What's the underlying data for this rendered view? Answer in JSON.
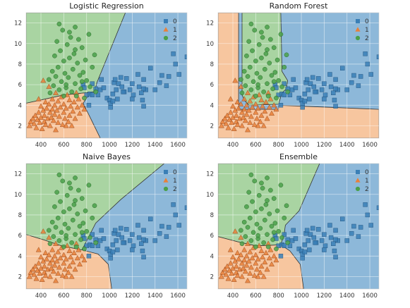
{
  "figure": {
    "xlim": [
      270,
      1680
    ],
    "ylim": [
      0.8,
      13.0
    ],
    "xticks": [
      400,
      600,
      800,
      1000,
      1200,
      1400,
      1600
    ],
    "yticks": [
      2,
      4,
      6,
      8,
      10,
      12
    ],
    "region_colors": {
      "0": "#8db8d9",
      "1": "#f7c69f",
      "2": "#a9d4a2"
    },
    "marker_colors": {
      "0": "#3a7fb6",
      "1": "#e8803a",
      "2": "#4aa04a"
    },
    "marker_shapes": {
      "0": "square",
      "1": "triangle",
      "2": "circle"
    },
    "legend": [
      "0",
      "1",
      "2"
    ],
    "grid": true,
    "legend_placement": "top-right"
  },
  "chart_data": [
    {
      "type": "scatter",
      "title": "Logistic Regression",
      "regions": {
        "2": [
          [
            270,
            13
          ],
          [
            1140,
            13
          ],
          [
            890,
            6.2
          ],
          [
            870,
            5.3
          ],
          [
            600,
            5.0
          ],
          [
            270,
            4.2
          ]
        ],
        "1": [
          [
            270,
            4.2
          ],
          [
            600,
            5.0
          ],
          [
            870,
            5.3
          ],
          [
            890,
            6.2
          ],
          [
            770,
            4.2
          ],
          [
            920,
            0.8
          ],
          [
            270,
            0.8
          ]
        ]
      }
    },
    {
      "type": "scatter",
      "title": "Random Forest",
      "regions": {
        "1": [
          [
            270,
            13
          ],
          [
            450,
            13
          ],
          [
            450,
            3.6
          ],
          [
            800,
            3.6
          ],
          [
            800,
            4.0
          ],
          [
            1680,
            3.6
          ],
          [
            1680,
            0.8
          ],
          [
            270,
            0.8
          ]
        ],
        "2": [
          [
            480,
            13
          ],
          [
            820,
            13
          ],
          [
            830,
            7.3
          ],
          [
            880,
            6.4
          ],
          [
            870,
            5.6
          ],
          [
            830,
            5.2
          ],
          [
            800,
            4.1
          ],
          [
            540,
            4.0
          ],
          [
            500,
            4.5
          ],
          [
            480,
            5.0
          ]
        ]
      }
    },
    {
      "type": "scatter",
      "title": "Naive Bayes",
      "regions": {
        "2": [
          [
            270,
            13
          ],
          [
            1480,
            13
          ],
          [
            1100,
            9.5
          ],
          [
            880,
            7.2
          ],
          [
            760,
            4.6
          ],
          [
            580,
            5.0
          ],
          [
            420,
            5.6
          ],
          [
            270,
            6.1
          ]
        ],
        "1": [
          [
            270,
            6.1
          ],
          [
            420,
            5.6
          ],
          [
            580,
            5.0
          ],
          [
            760,
            4.6
          ],
          [
            900,
            4.2
          ],
          [
            990,
            3.2
          ],
          [
            1010,
            1.6
          ],
          [
            1020,
            0.8
          ],
          [
            270,
            0.8
          ]
        ]
      }
    },
    {
      "type": "scatter",
      "title": "Ensemble",
      "regions": {
        "2": [
          [
            270,
            13
          ],
          [
            1160,
            13
          ],
          [
            980,
            8.4
          ],
          [
            860,
            7.0
          ],
          [
            850,
            6.2
          ],
          [
            820,
            5.1
          ],
          [
            600,
            5.0
          ],
          [
            440,
            5.4
          ],
          [
            270,
            5.9
          ]
        ],
        "1": [
          [
            270,
            5.9
          ],
          [
            440,
            5.4
          ],
          [
            600,
            5.0
          ],
          [
            820,
            5.1
          ],
          [
            900,
            4.5
          ],
          [
            990,
            3.2
          ],
          [
            1010,
            1.6
          ],
          [
            1020,
            0.8
          ],
          [
            270,
            0.8
          ]
        ]
      }
    }
  ],
  "points": {
    "0": [
      [
        770,
        6.0
      ],
      [
        780,
        5.7
      ],
      [
        800,
        5.0
      ],
      [
        820,
        4.0
      ],
      [
        830,
        5.1
      ],
      [
        850,
        5.0
      ],
      [
        850,
        6.1
      ],
      [
        880,
        5.6
      ],
      [
        900,
        5.0
      ],
      [
        920,
        5.5
      ],
      [
        930,
        6.5
      ],
      [
        950,
        5.7
      ],
      [
        980,
        4.7
      ],
      [
        1000,
        4.5
      ],
      [
        1010,
        4.2
      ],
      [
        1010,
        3.8
      ],
      [
        1030,
        4.4
      ],
      [
        1030,
        5.1
      ],
      [
        1040,
        6.2
      ],
      [
        1050,
        6.5
      ],
      [
        1060,
        5.5
      ],
      [
        1070,
        4.6
      ],
      [
        1080,
        6.1
      ],
      [
        1100,
        6.7
      ],
      [
        1110,
        5.8
      ],
      [
        1130,
        5.3
      ],
      [
        1150,
        6.6
      ],
      [
        1180,
        5.5
      ],
      [
        1200,
        6.1
      ],
      [
        1200,
        4.6
      ],
      [
        1210,
        5.0
      ],
      [
        1250,
        7.0
      ],
      [
        1260,
        5.8
      ],
      [
        1280,
        5.2
      ],
      [
        1290,
        4.5
      ],
      [
        1300,
        3.9
      ],
      [
        1300,
        6.5
      ],
      [
        1320,
        5.5
      ],
      [
        1360,
        7.6
      ],
      [
        1400,
        5.5
      ],
      [
        1440,
        6.2
      ],
      [
        1460,
        6.9
      ],
      [
        1500,
        5.9
      ],
      [
        1520,
        6.8
      ],
      [
        1560,
        9.0
      ],
      [
        1580,
        8.0
      ],
      [
        1610,
        7.0
      ],
      [
        1680,
        8.7
      ],
      [
        1300,
        5.6
      ],
      [
        1120,
        5.3
      ]
    ],
    "1": [
      [
        300,
        2.0
      ],
      [
        310,
        2.4
      ],
      [
        330,
        2.7
      ],
      [
        340,
        2.2
      ],
      [
        350,
        3.0
      ],
      [
        360,
        1.8
      ],
      [
        370,
        2.6
      ],
      [
        380,
        3.3
      ],
      [
        390,
        2.3
      ],
      [
        400,
        3.9
      ],
      [
        400,
        2.8
      ],
      [
        410,
        1.7
      ],
      [
        420,
        3.5
      ],
      [
        430,
        2.4
      ],
      [
        430,
        3.0
      ],
      [
        440,
        2.1
      ],
      [
        440,
        4.3
      ],
      [
        450,
        3.7
      ],
      [
        460,
        2.7
      ],
      [
        470,
        4.1
      ],
      [
        480,
        3.3
      ],
      [
        480,
        2.0
      ],
      [
        490,
        2.8
      ],
      [
        500,
        3.6
      ],
      [
        500,
        4.6
      ],
      [
        510,
        2.5
      ],
      [
        520,
        3.1
      ],
      [
        520,
        4.0
      ],
      [
        530,
        1.6
      ],
      [
        530,
        5.2
      ],
      [
        540,
        3.5
      ],
      [
        550,
        2.3
      ],
      [
        550,
        4.4
      ],
      [
        560,
        2.9
      ],
      [
        570,
        3.8
      ],
      [
        580,
        4.8
      ],
      [
        590,
        2.1
      ],
      [
        600,
        3.3
      ],
      [
        600,
        4.1
      ],
      [
        610,
        2.7
      ],
      [
        620,
        3.7
      ],
      [
        630,
        5.0
      ],
      [
        640,
        2.4
      ],
      [
        650,
        3.0
      ],
      [
        650,
        4.5
      ],
      [
        660,
        3.9
      ],
      [
        670,
        2.0
      ],
      [
        680,
        3.4
      ],
      [
        690,
        4.3
      ],
      [
        700,
        2.7
      ],
      [
        710,
        5.2
      ],
      [
        720,
        3.8
      ],
      [
        730,
        4.6
      ],
      [
        740,
        3.2
      ],
      [
        760,
        4.0
      ],
      [
        780,
        3.6
      ],
      [
        470,
        5.8
      ],
      [
        420,
        6.4
      ],
      [
        380,
        4.6
      ],
      [
        620,
        2.0
      ]
    ],
    "2": [
      [
        470,
        6.5
      ],
      [
        480,
        5.2
      ],
      [
        500,
        7.3
      ],
      [
        510,
        5.9
      ],
      [
        520,
        8.8
      ],
      [
        530,
        6.8
      ],
      [
        540,
        10.2
      ],
      [
        550,
        7.7
      ],
      [
        560,
        5.5
      ],
      [
        570,
        9.3
      ],
      [
        580,
        6.3
      ],
      [
        590,
        11.3
      ],
      [
        600,
        8.3
      ],
      [
        600,
        4.9
      ],
      [
        610,
        7.1
      ],
      [
        620,
        5.7
      ],
      [
        630,
        9.9
      ],
      [
        640,
        6.7
      ],
      [
        650,
        8.6
      ],
      [
        660,
        10.6
      ],
      [
        670,
        5.3
      ],
      [
        680,
        7.5
      ],
      [
        690,
        9.0
      ],
      [
        700,
        6.1
      ],
      [
        700,
        11.6
      ],
      [
        710,
        4.9
      ],
      [
        720,
        8.1
      ],
      [
        730,
        10.4
      ],
      [
        740,
        6.9
      ],
      [
        750,
        5.6
      ],
      [
        760,
        9.6
      ],
      [
        770,
        7.2
      ],
      [
        780,
        4.7
      ],
      [
        790,
        8.4
      ],
      [
        800,
        6.4
      ],
      [
        820,
        10.9
      ],
      [
        830,
        5.8
      ],
      [
        850,
        7.7
      ],
      [
        870,
        8.9
      ],
      [
        880,
        5.3
      ],
      [
        560,
        11.9
      ],
      [
        650,
        11.1
      ],
      [
        700,
        9.4
      ],
      [
        620,
        6.0
      ],
      [
        760,
        6.3
      ]
    ]
  }
}
